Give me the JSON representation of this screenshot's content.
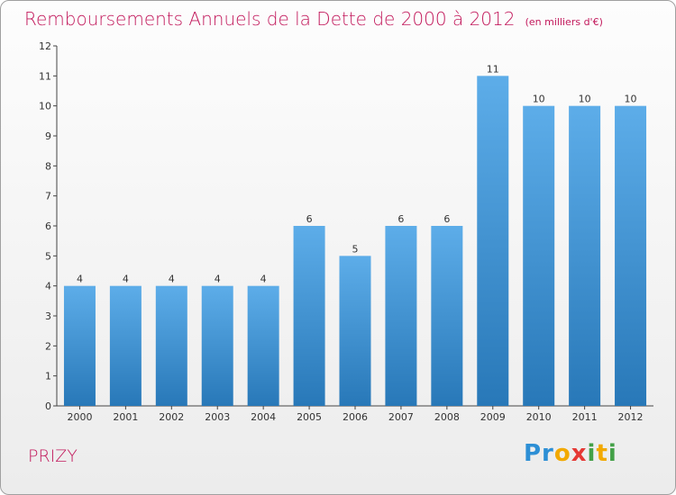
{
  "header": {
    "title": "Remboursements Annuels de la Dette de 2000 à 2012",
    "subtitle": "(en milliers d'€)"
  },
  "footer": {
    "commune": "PRIZY",
    "logo_text": "Proxiti"
  },
  "chart_data": {
    "type": "bar",
    "title": "Remboursements Annuels de la Dette de 2000 à 2012",
    "subtitle": "(en milliers d'€)",
    "xlabel": "",
    "ylabel": "",
    "categories": [
      "2000",
      "2001",
      "2002",
      "2003",
      "2004",
      "2005",
      "2006",
      "2007",
      "2008",
      "2009",
      "2010",
      "2011",
      "2012"
    ],
    "values": [
      4,
      4,
      4,
      4,
      4,
      6,
      5,
      6,
      6,
      11,
      10,
      10,
      10
    ],
    "ylim": [
      0,
      12
    ],
    "yticks": [
      0,
      1,
      2,
      3,
      4,
      5,
      6,
      7,
      8,
      9,
      10,
      11,
      12
    ],
    "grid": false,
    "colors": {
      "bar_top": "#5dade9",
      "bar_bottom": "#2878b8",
      "title": "#c2185b"
    }
  }
}
